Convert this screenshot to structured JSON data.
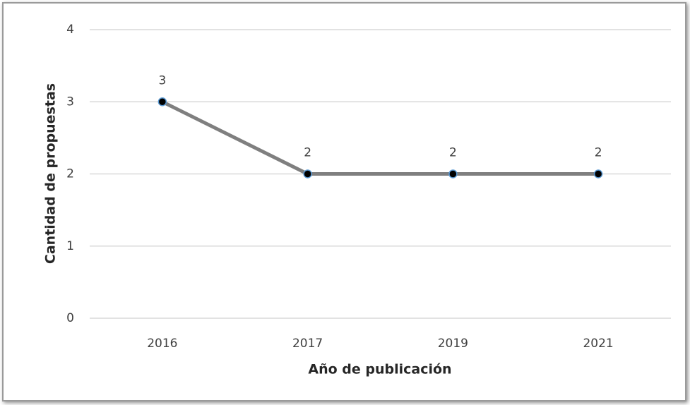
{
  "chart_data": {
    "type": "line",
    "x_label": "Año de publicación",
    "y_label": "Cantidad de propuestas",
    "categories": [
      "2016",
      "2017",
      "2019",
      "2021"
    ],
    "values": [
      3,
      2,
      2,
      2
    ],
    "color": "#7f7f7f",
    "marker_color": "#000000",
    "ylim": [
      0,
      4
    ],
    "yticks": [
      0,
      1,
      2,
      3,
      4
    ],
    "grid": true
  }
}
